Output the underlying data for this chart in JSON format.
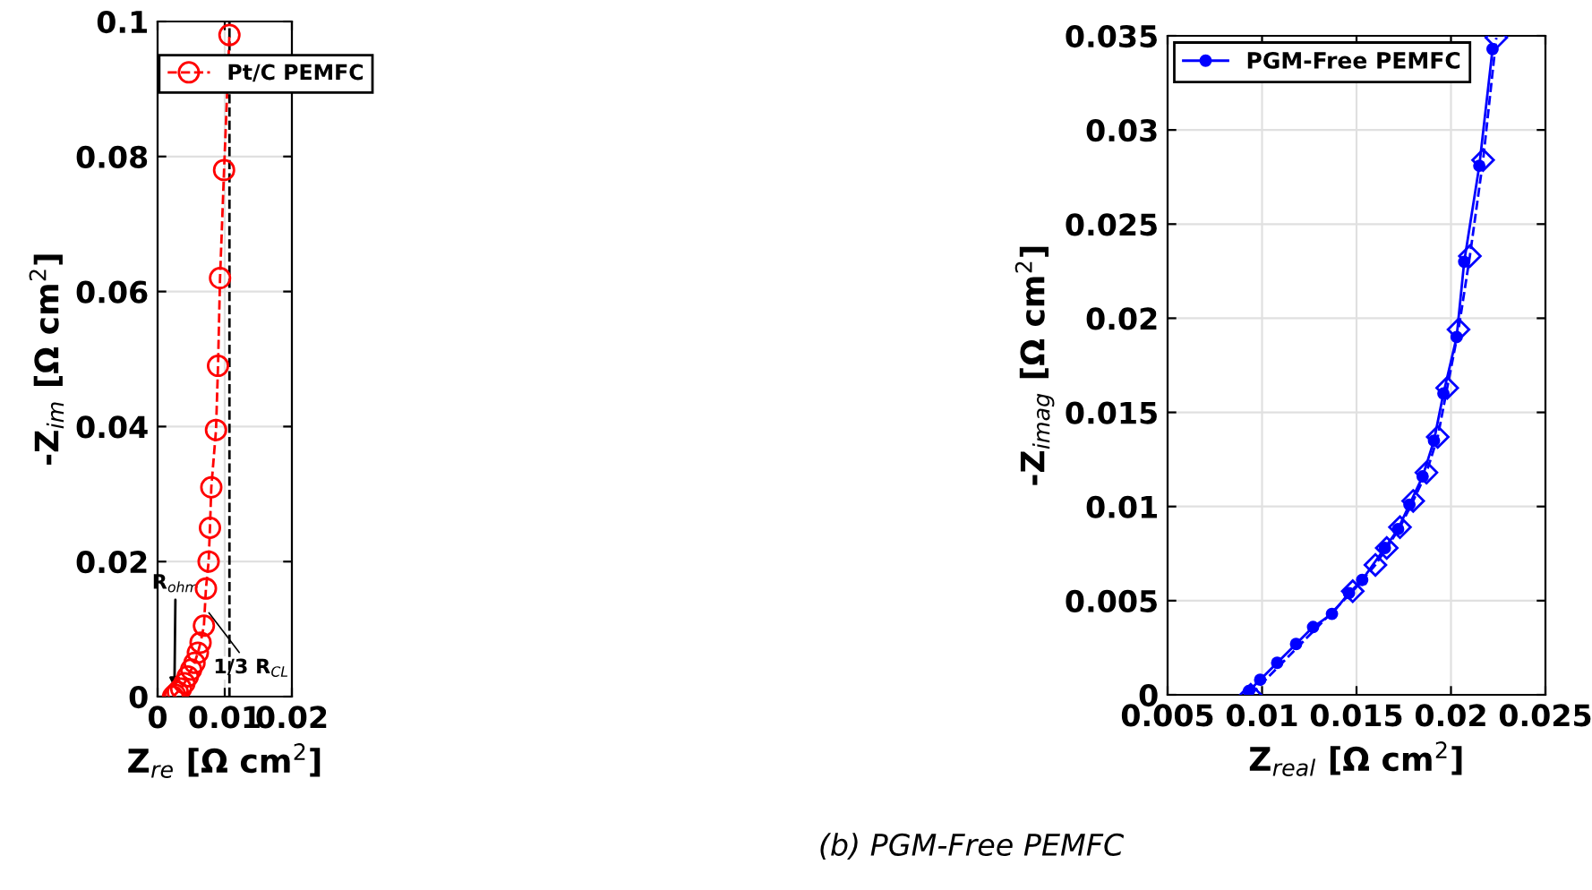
{
  "chart_data": [
    {
      "type": "line",
      "xlabel": "Z$_{re}$ [Ω cm$^{2}$]",
      "ylabel": "-Z$_{im}$ [Ω cm$^{2}$]",
      "xlim": [
        0,
        0.02
      ],
      "xticks": [
        0,
        0.01,
        0.02
      ],
      "ylim": [
        0,
        0.1
      ],
      "yticks": [
        0,
        0.02,
        0.04,
        0.06,
        0.08,
        0.1
      ],
      "grid": true,
      "legend": "top right",
      "marker": "circle",
      "line_style": "dashed",
      "series": [
        {
          "name": "Pt/C PEMFC",
          "color": "#ff0000",
          "x": [
            0.0023,
            0.0026,
            0.003,
            0.0035,
            0.004,
            0.0045,
            0.005,
            0.0055,
            0.006,
            0.0064,
            0.0069,
            0.0072,
            0.0076,
            0.0078,
            0.008,
            0.0087,
            0.009,
            0.0093,
            0.0099,
            0.0107
          ],
          "values": [
            0,
            0.0003,
            0.0007,
            0.0012,
            0.002,
            0.003,
            0.004,
            0.005,
            0.0065,
            0.008,
            0.0105,
            0.016,
            0.02,
            0.025,
            0.031,
            0.0395,
            0.049,
            0.062,
            0.078,
            0.098
          ]
        }
      ],
      "ref_lines": [
        {
          "axis": "x",
          "value": 0.0107,
          "line_style": "dashed",
          "color": "#000000"
        }
      ],
      "annotations": [
        {
          "text": "R$_{ohm}$",
          "x": 0.0025,
          "y": 0.0005
        },
        {
          "text": "1/3 R$_{CL}$",
          "x": 0.0072,
          "y": 0.013
        }
      ]
    },
    {
      "type": "line",
      "xlabel": "Z$_{real}$ [Ω cm$^{2}$]",
      "ylabel": "-Z$_{imag}$ [Ω cm$^{2}$]",
      "xlim": [
        0.005,
        0.025
      ],
      "xticks": [
        0.005,
        0.01,
        0.015,
        0.02,
        0.025
      ],
      "ylim": [
        0,
        0.035
      ],
      "yticks": [
        0,
        0.005,
        0.01,
        0.015,
        0.02,
        0.025,
        0.03,
        0.035
      ],
      "grid": true,
      "legend": "top left",
      "marker": "circle",
      "series": [
        {
          "name": "PGM-Free PEMFC",
          "color": "#0000ff",
          "x": [
            0.0093,
            0.0099,
            0.0108,
            0.0118,
            0.0127,
            0.0137,
            0.0146,
            0.0153,
            0.0165,
            0.0172,
            0.0178,
            0.0185,
            0.0191,
            0.0196,
            0.0203,
            0.0207,
            0.0215,
            0.0222
          ],
          "values": [
            0.0002,
            0.0008,
            0.0017,
            0.0027,
            0.0036,
            0.0043,
            0.0054,
            0.0061,
            0.0078,
            0.0088,
            0.0101,
            0.0116,
            0.0135,
            0.016,
            0.019,
            0.023,
            0.0281,
            0.0343
          ]
        },
        {
          "color": "#0000ff",
          "marker": "diamond",
          "line_style": "dashed",
          "x": [
            0.0094,
            0.0148,
            0.016,
            0.0166,
            0.0173,
            0.018,
            0.0187,
            0.0193,
            0.0198,
            0.0204,
            0.021,
            0.0217,
            0.0224
          ],
          "values": [
            0,
            0.0055,
            0.0069,
            0.0078,
            0.0089,
            0.0103,
            0.0118,
            0.0137,
            0.0163,
            0.0194,
            0.0233,
            0.0284,
            0.0349
          ]
        }
      ],
      "annotations": [
        "(b) PGM-Free PEMFC"
      ]
    }
  ]
}
